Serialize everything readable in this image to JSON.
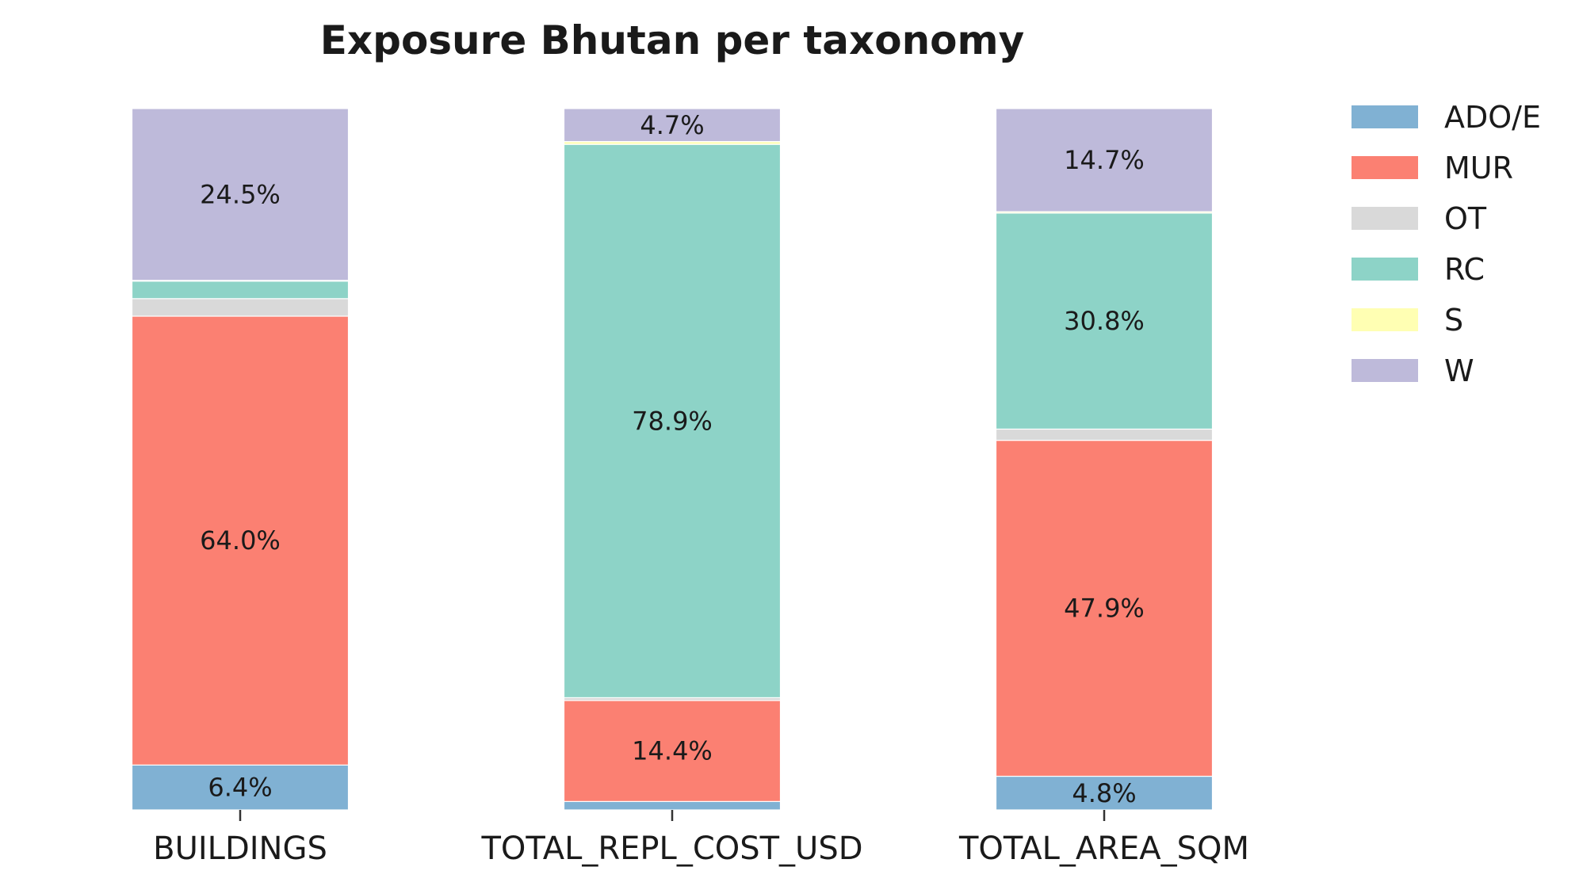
{
  "chart_data": {
    "type": "bar",
    "stacked": true,
    "title": "Exposure Bhutan per taxonomy",
    "xlabel": "",
    "ylabel": "",
    "ylim": [
      0,
      100
    ],
    "grid": false,
    "legend_position": "top-right",
    "categories": [
      "BUILDINGS",
      "TOTAL_REPL_COST_USD",
      "TOTAL_AREA_SQM"
    ],
    "series": [
      {
        "name": "ADO/E",
        "color": "#80b1d3",
        "values": [
          6.4,
          1.2,
          4.8
        ],
        "labels": [
          "6.4%",
          "",
          "4.8%"
        ]
      },
      {
        "name": "MUR",
        "color": "#fb8072",
        "values": [
          64.0,
          14.4,
          47.9
        ],
        "labels": [
          "64.0%",
          "14.4%",
          "47.9%"
        ]
      },
      {
        "name": "OT",
        "color": "#d9d9d9",
        "values": [
          2.5,
          0.4,
          1.6
        ],
        "labels": [
          "",
          "",
          ""
        ]
      },
      {
        "name": "RC",
        "color": "#8dd3c7",
        "values": [
          2.5,
          78.9,
          30.8
        ],
        "labels": [
          "",
          "78.9%",
          "30.8%"
        ]
      },
      {
        "name": "S",
        "color": "#ffffb3",
        "values": [
          0.1,
          0.4,
          0.2
        ],
        "labels": [
          "",
          "",
          ""
        ]
      },
      {
        "name": "W",
        "color": "#bebada",
        "values": [
          24.5,
          4.7,
          14.7
        ],
        "labels": [
          "24.5%",
          "4.7%",
          "14.7%"
        ]
      }
    ]
  }
}
